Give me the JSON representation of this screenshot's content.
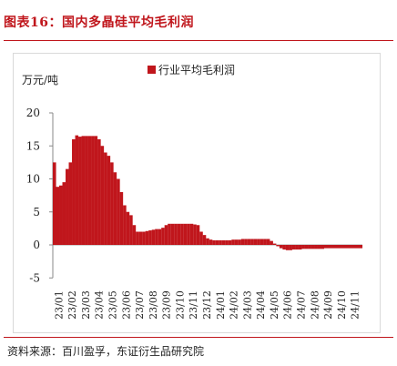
{
  "title": "图表16：国内多晶硅平均毛利润",
  "source": "资料来源：百川盈孚，东证衍生品研究院",
  "chart_data": {
    "type": "bar",
    "unit_label": "万元/吨",
    "legend": [
      "行业平均毛利润"
    ],
    "legend_position": "top",
    "bar_color": "#c0161c",
    "ylim": [
      -5,
      20
    ],
    "yticks": [
      -5,
      0,
      5,
      10,
      15,
      20
    ],
    "xtick_labels": [
      "23/01",
      "23/02",
      "23/03",
      "23/04",
      "23/05",
      "23/06",
      "23/07",
      "23/08",
      "23/09",
      "23/10",
      "23/11",
      "23/12",
      "24/01",
      "24/02",
      "24/03",
      "24/04",
      "24/05",
      "24/06",
      "24/07",
      "24/08",
      "24/09",
      "24/10",
      "24/11"
    ],
    "series": [
      {
        "name": "行业平均毛利润",
        "values": [
          12.5,
          8.8,
          9.0,
          9.5,
          11.5,
          12.5,
          16.0,
          16.6,
          16.4,
          16.5,
          16.5,
          16.5,
          16.5,
          16.5,
          16.0,
          15.0,
          14.0,
          13.5,
          12.5,
          11.0,
          10.0,
          8.0,
          6.0,
          5.0,
          4.5,
          3.0,
          2.0,
          2.0,
          2.0,
          2.1,
          2.2,
          2.3,
          2.4,
          2.4,
          2.6,
          3.0,
          3.2,
          3.2,
          3.2,
          3.2,
          3.2,
          3.2,
          3.2,
          3.2,
          3.1,
          3.0,
          2.0,
          1.5,
          1.0,
          0.8,
          0.7,
          0.7,
          0.7,
          0.7,
          0.7,
          0.7,
          0.8,
          0.8,
          0.8,
          0.9,
          0.9,
          0.9,
          0.9,
          0.9,
          0.9,
          0.9,
          0.9,
          0.9,
          0.6,
          0.2,
          -0.2,
          -0.5,
          -0.7,
          -0.8,
          -0.8,
          -0.7,
          -0.7,
          -0.7,
          -0.6,
          -0.6,
          -0.6,
          -0.6,
          -0.6,
          -0.6,
          -0.6,
          -0.5,
          -0.5,
          -0.5,
          -0.5,
          -0.5,
          -0.5,
          -0.5,
          -0.5,
          -0.5,
          -0.5,
          -0.5,
          -0.5
        ]
      }
    ]
  }
}
